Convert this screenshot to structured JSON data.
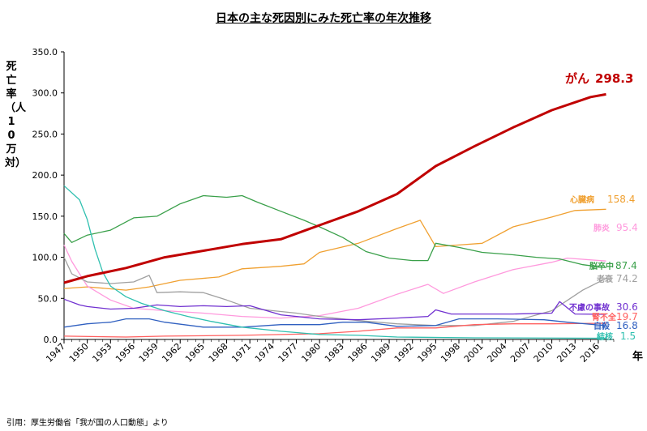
{
  "chart_data": {
    "type": "line",
    "title": "日本の主な死因別にみた死亡率の年次推移",
    "ylabel": "死亡率（人10万対）",
    "xlabel": "年",
    "source": "引用：厚生労働省「我が国の人口動態」より",
    "ylim": [
      0,
      350
    ],
    "yticks": [
      "0.0",
      "50.0",
      "100.0",
      "150.0",
      "200.0",
      "250.0",
      "300.0",
      "350.0"
    ],
    "xlim": [
      1947,
      2018
    ],
    "xticks": [
      "1947",
      "1950",
      "1953",
      "1956",
      "1959",
      "1962",
      "1965",
      "1968",
      "1971",
      "1974",
      "1977",
      "1980",
      "1983",
      "1986",
      "1989",
      "1992",
      "1995",
      "1998",
      "2001",
      "2004",
      "2007",
      "2010",
      "2013",
      "2016"
    ],
    "grid": false,
    "series": [
      {
        "name": "がん",
        "value_label": "298.3",
        "color": "#c00000",
        "width": 3,
        "label_style": "large",
        "points": [
          [
            1947,
            69
          ],
          [
            1950,
            77
          ],
          [
            1955,
            87
          ],
          [
            1960,
            100
          ],
          [
            1965,
            108
          ],
          [
            1970,
            116
          ],
          [
            1975,
            122
          ],
          [
            1980,
            139
          ],
          [
            1985,
            156
          ],
          [
            1990,
            177
          ],
          [
            1995,
            211
          ],
          [
            2000,
            235
          ],
          [
            2005,
            258
          ],
          [
            2010,
            279
          ],
          [
            2015,
            295
          ],
          [
            2017,
            298.3
          ]
        ]
      },
      {
        "name": "心臓病",
        "value_label": "158.4",
        "color": "#f0a030",
        "width": 1.3,
        "points": [
          [
            1947,
            62
          ],
          [
            1950,
            64
          ],
          [
            1955,
            60
          ],
          [
            1958,
            64
          ],
          [
            1962,
            72
          ],
          [
            1967,
            76
          ],
          [
            1970,
            86
          ],
          [
            1975,
            89
          ],
          [
            1978,
            92
          ],
          [
            1980,
            106
          ],
          [
            1985,
            117
          ],
          [
            1990,
            135
          ],
          [
            1993,
            145
          ],
          [
            1995,
            113
          ],
          [
            1998,
            115
          ],
          [
            2001,
            117
          ],
          [
            2005,
            137
          ],
          [
            2010,
            149
          ],
          [
            2013,
            157
          ],
          [
            2017,
            158.4
          ]
        ]
      },
      {
        "name": "肺炎",
        "value_label": "95.4",
        "color": "#ff99dd",
        "width": 1.3,
        "points": [
          [
            1947,
            115
          ],
          [
            1948,
            95
          ],
          [
            1950,
            65
          ],
          [
            1953,
            48
          ],
          [
            1956,
            38
          ],
          [
            1960,
            35
          ],
          [
            1965,
            32
          ],
          [
            1970,
            28
          ],
          [
            1975,
            26
          ],
          [
            1980,
            29
          ],
          [
            1985,
            38
          ],
          [
            1990,
            55
          ],
          [
            1994,
            67
          ],
          [
            1996,
            56
          ],
          [
            2000,
            70
          ],
          [
            2005,
            85
          ],
          [
            2010,
            94
          ],
          [
            2012,
            99
          ],
          [
            2017,
            95.4
          ]
        ]
      },
      {
        "name": "脳卒中",
        "value_label": "87.4",
        "color": "#3aa04a",
        "width": 1.3,
        "points": [
          [
            1947,
            129
          ],
          [
            1948,
            118
          ],
          [
            1950,
            127
          ],
          [
            1953,
            133
          ],
          [
            1956,
            148
          ],
          [
            1959,
            150
          ],
          [
            1962,
            165
          ],
          [
            1965,
            175
          ],
          [
            1968,
            173
          ],
          [
            1970,
            175
          ],
          [
            1972,
            167
          ],
          [
            1975,
            156
          ],
          [
            1978,
            145
          ],
          [
            1980,
            137
          ],
          [
            1983,
            124
          ],
          [
            1986,
            107
          ],
          [
            1989,
            99
          ],
          [
            1992,
            96
          ],
          [
            1994,
            96
          ],
          [
            1995,
            117
          ],
          [
            1998,
            112
          ],
          [
            2001,
            106
          ],
          [
            2005,
            103
          ],
          [
            2008,
            100
          ],
          [
            2011,
            98
          ],
          [
            2014,
            91
          ],
          [
            2017,
            87.4
          ]
        ]
      },
      {
        "name": "老衰",
        "value_label": "74.2",
        "color": "#a0a0a0",
        "width": 1.3,
        "points": [
          [
            1947,
            100
          ],
          [
            1948,
            80
          ],
          [
            1950,
            70
          ],
          [
            1953,
            68
          ],
          [
            1956,
            70
          ],
          [
            1958,
            78
          ],
          [
            1959,
            57
          ],
          [
            1962,
            58
          ],
          [
            1965,
            57
          ],
          [
            1968,
            48
          ],
          [
            1971,
            38
          ],
          [
            1974,
            35
          ],
          [
            1977,
            32
          ],
          [
            1980,
            28
          ],
          [
            1985,
            23
          ],
          [
            1990,
            19
          ],
          [
            1995,
            17
          ],
          [
            2000,
            17
          ],
          [
            2005,
            22
          ],
          [
            2010,
            35
          ],
          [
            2014,
            60
          ],
          [
            2017,
            74.2
          ]
        ]
      },
      {
        "name": "不慮の事故",
        "value_label": "30.6",
        "color": "#7030d0",
        "width": 1.3,
        "points": [
          [
            1947,
            49
          ],
          [
            1949,
            42
          ],
          [
            1950,
            40
          ],
          [
            1953,
            37
          ],
          [
            1956,
            38
          ],
          [
            1959,
            42
          ],
          [
            1962,
            40
          ],
          [
            1965,
            41
          ],
          [
            1968,
            40
          ],
          [
            1971,
            41
          ],
          [
            1975,
            30
          ],
          [
            1980,
            25
          ],
          [
            1985,
            24
          ],
          [
            1990,
            26
          ],
          [
            1994,
            28
          ],
          [
            1995,
            36
          ],
          [
            1997,
            31
          ],
          [
            2000,
            31
          ],
          [
            2005,
            31
          ],
          [
            2010,
            32
          ],
          [
            2011,
            46
          ],
          [
            2013,
            31
          ],
          [
            2017,
            30.6
          ]
        ]
      },
      {
        "name": "腎不全",
        "value_label": "19.7",
        "color": "#ff6060",
        "width": 1.3,
        "points": [
          [
            1947,
            4
          ],
          [
            1955,
            3
          ],
          [
            1960,
            4
          ],
          [
            1970,
            5
          ],
          [
            1980,
            7
          ],
          [
            1985,
            10
          ],
          [
            1990,
            14
          ],
          [
            1995,
            14
          ],
          [
            2000,
            18
          ],
          [
            2005,
            19
          ],
          [
            2010,
            19
          ],
          [
            2017,
            19.7
          ]
        ]
      },
      {
        "name": "自殺",
        "value_label": "16.8",
        "color": "#3060c0",
        "width": 1.3,
        "points": [
          [
            1947,
            15
          ],
          [
            1950,
            19
          ],
          [
            1953,
            21
          ],
          [
            1955,
            25
          ],
          [
            1958,
            25
          ],
          [
            1960,
            21
          ],
          [
            1965,
            15
          ],
          [
            1970,
            15
          ],
          [
            1975,
            18
          ],
          [
            1980,
            18
          ],
          [
            1983,
            21
          ],
          [
            1986,
            21
          ],
          [
            1990,
            16
          ],
          [
            1995,
            17
          ],
          [
            1998,
            25
          ],
          [
            2003,
            25
          ],
          [
            2009,
            24
          ],
          [
            2012,
            21
          ],
          [
            2017,
            16.8
          ]
        ]
      },
      {
        "name": "結核",
        "value_label": "1.5",
        "color": "#30c0b0",
        "width": 1.3,
        "points": [
          [
            1947,
            187
          ],
          [
            1949,
            170
          ],
          [
            1950,
            146
          ],
          [
            1951,
            110
          ],
          [
            1952,
            82
          ],
          [
            1953,
            65
          ],
          [
            1955,
            52
          ],
          [
            1957,
            44
          ],
          [
            1960,
            35
          ],
          [
            1963,
            28
          ],
          [
            1966,
            22
          ],
          [
            1970,
            15
          ],
          [
            1975,
            10
          ],
          [
            1980,
            6
          ],
          [
            1985,
            5
          ],
          [
            1990,
            3
          ],
          [
            2000,
            2
          ],
          [
            2017,
            1.5
          ]
        ]
      }
    ]
  }
}
